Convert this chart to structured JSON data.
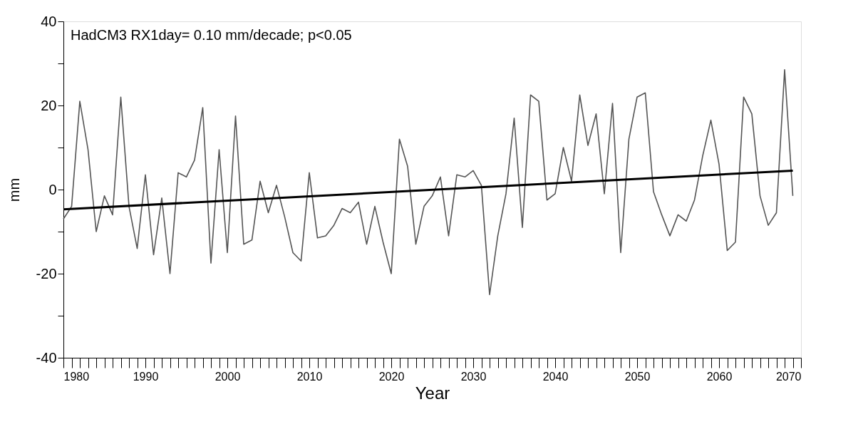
{
  "chart_data": {
    "type": "line",
    "xlabel": "Year",
    "ylabel": "mm",
    "annotations": [
      "HadCM3 RX1day= 0.10 mm/decade; p<0.05"
    ],
    "x": [
      1980,
      1981,
      1982,
      1983,
      1984,
      1985,
      1986,
      1987,
      1988,
      1989,
      1990,
      1991,
      1992,
      1993,
      1994,
      1995,
      1996,
      1997,
      1998,
      1999,
      2000,
      2001,
      2002,
      2003,
      2004,
      2005,
      2006,
      2007,
      2008,
      2009,
      2010,
      2011,
      2012,
      2013,
      2014,
      2015,
      2016,
      2017,
      2018,
      2019,
      2020,
      2021,
      2022,
      2023,
      2024,
      2025,
      2026,
      2027,
      2028,
      2029,
      2030,
      2031,
      2032,
      2033,
      2034,
      2035,
      2036,
      2037,
      2038,
      2039,
      2040,
      2041,
      2042,
      2043,
      2044,
      2045,
      2046,
      2047,
      2048,
      2049,
      2050,
      2051,
      2052,
      2053,
      2054,
      2055,
      2056,
      2057,
      2058,
      2059,
      2060,
      2061,
      2062,
      2063,
      2064,
      2065,
      2066,
      2067,
      2068,
      2069
    ],
    "series": [
      {
        "color": "#555555",
        "values": [
          -7,
          -4,
          21,
          9.5,
          -10,
          -1.5,
          -6,
          22,
          -4,
          -14,
          3.5,
          -15.5,
          -2,
          -20,
          4,
          3,
          7,
          19.5,
          -17.5,
          9.5,
          -15,
          17.5,
          -13,
          -12,
          2,
          -5.5,
          1,
          -6.5,
          -15,
          -17,
          4,
          -11.5,
          -11,
          -8.5,
          -4.5,
          -5.5,
          -3,
          -13,
          -4,
          -12.5,
          -20,
          12,
          5.5,
          -13,
          -4,
          -1.5,
          3,
          -11,
          3.5,
          3,
          4.5,
          1,
          -25,
          -11,
          -1,
          17,
          -9,
          22.5,
          21,
          -2.5,
          -1,
          10,
          2,
          22.5,
          10.5,
          18,
          -1,
          20.5,
          -15,
          12,
          22,
          23,
          -0.5,
          -6,
          -11,
          -6,
          -7.5,
          -2.5,
          8,
          16.5,
          6,
          -14.5,
          -12.5,
          22,
          18,
          -1.5,
          -8.5,
          -5.5,
          28.5,
          -1.5
        ]
      },
      {
        "type": "line",
        "color": "#000000",
        "x": [
          1980,
          2069
        ],
        "values": [
          -4.7,
          4.5
        ]
      }
    ],
    "xlim": [
      1980,
      2070
    ],
    "xticks": [
      1980,
      {
        "value": 1981,
        "label": null
      },
      {
        "value": 1982,
        "label": null
      },
      {
        "value": 1983,
        "label": null
      },
      {
        "value": 1984,
        "label": null
      },
      {
        "value": 1985,
        "label": null
      },
      {
        "value": 1986,
        "label": null
      },
      {
        "value": 1987,
        "label": null
      },
      {
        "value": 1988,
        "label": null
      },
      {
        "value": 1989,
        "label": null
      },
      1990,
      {
        "value": 1991,
        "label": null
      },
      {
        "value": 1992,
        "label": null
      },
      {
        "value": 1993,
        "label": null
      },
      {
        "value": 1994,
        "label": null
      },
      {
        "value": 1995,
        "label": null
      },
      {
        "value": 1996,
        "label": null
      },
      {
        "value": 1997,
        "label": null
      },
      {
        "value": 1998,
        "label": null
      },
      {
        "value": 1999,
        "label": null
      },
      2000,
      {
        "value": 2001,
        "label": null
      },
      {
        "value": 2002,
        "label": null
      },
      {
        "value": 2003,
        "label": null
      },
      {
        "value": 2004,
        "label": null
      },
      {
        "value": 2005,
        "label": null
      },
      {
        "value": 2006,
        "label": null
      },
      {
        "value": 2007,
        "label": null
      },
      {
        "value": 2008,
        "label": null
      },
      {
        "value": 2009,
        "label": null
      },
      2010,
      {
        "value": 2011,
        "label": null
      },
      {
        "value": 2012,
        "label": null
      },
      {
        "value": 2013,
        "label": null
      },
      {
        "value": 2014,
        "label": null
      },
      {
        "value": 2015,
        "label": null
      },
      {
        "value": 2016,
        "label": null
      },
      {
        "value": 2017,
        "label": null
      },
      {
        "value": 2018,
        "label": null
      },
      {
        "value": 2019,
        "label": null
      },
      2020,
      {
        "value": 2021,
        "label": null
      },
      {
        "value": 2022,
        "label": null
      },
      {
        "value": 2023,
        "label": null
      },
      {
        "value": 2024,
        "label": null
      },
      {
        "value": 2025,
        "label": null
      },
      {
        "value": 2026,
        "label": null
      },
      {
        "value": 2027,
        "label": null
      },
      {
        "value": 2028,
        "label": null
      },
      {
        "value": 2029,
        "label": null
      },
      2030,
      {
        "value": 2031,
        "label": null
      },
      {
        "value": 2032,
        "label": null
      },
      {
        "value": 2033,
        "label": null
      },
      {
        "value": 2034,
        "label": null
      },
      {
        "value": 2035,
        "label": null
      },
      {
        "value": 2036,
        "label": null
      },
      {
        "value": 2037,
        "label": null
      },
      {
        "value": 2038,
        "label": null
      },
      {
        "value": 2039,
        "label": null
      },
      2040,
      {
        "value": 2041,
        "label": null
      },
      {
        "value": 2042,
        "label": null
      },
      {
        "value": 2043,
        "label": null
      },
      {
        "value": 2044,
        "label": null
      },
      {
        "value": 2045,
        "label": null
      },
      {
        "value": 2046,
        "label": null
      },
      {
        "value": 2047,
        "label": null
      },
      {
        "value": 2048,
        "label": null
      },
      {
        "value": 2049,
        "label": null
      },
      2050,
      {
        "value": 2051,
        "label": null
      },
      {
        "value": 2052,
        "label": null
      },
      {
        "value": 2053,
        "label": null
      },
      {
        "value": 2054,
        "label": null
      },
      {
        "value": 2055,
        "label": null
      },
      {
        "value": 2056,
        "label": null
      },
      {
        "value": 2057,
        "label": null
      },
      {
        "value": 2058,
        "label": null
      },
      {
        "value": 2059,
        "label": null
      },
      2060,
      {
        "value": 2061,
        "label": null
      },
      {
        "value": 2062,
        "label": null
      },
      {
        "value": 2063,
        "label": null
      },
      {
        "value": 2064,
        "label": null
      },
      {
        "value": 2065,
        "label": null
      },
      {
        "value": 2066,
        "label": null
      },
      {
        "value": 2067,
        "label": null
      },
      {
        "value": 2068,
        "label": null
      },
      {
        "value": 2069,
        "label": null
      },
      2070
    ],
    "ylim": [
      -40,
      40
    ],
    "yticks": [
      -40,
      {
        "value": -30,
        "label": null
      },
      -20,
      {
        "value": -10,
        "label": null
      },
      0,
      {
        "value": 10,
        "label": null
      },
      20,
      {
        "value": 30,
        "label": null
      },
      40
    ],
    "grid": false,
    "legend": false,
    "marker": "none",
    "line_style": "solid"
  }
}
